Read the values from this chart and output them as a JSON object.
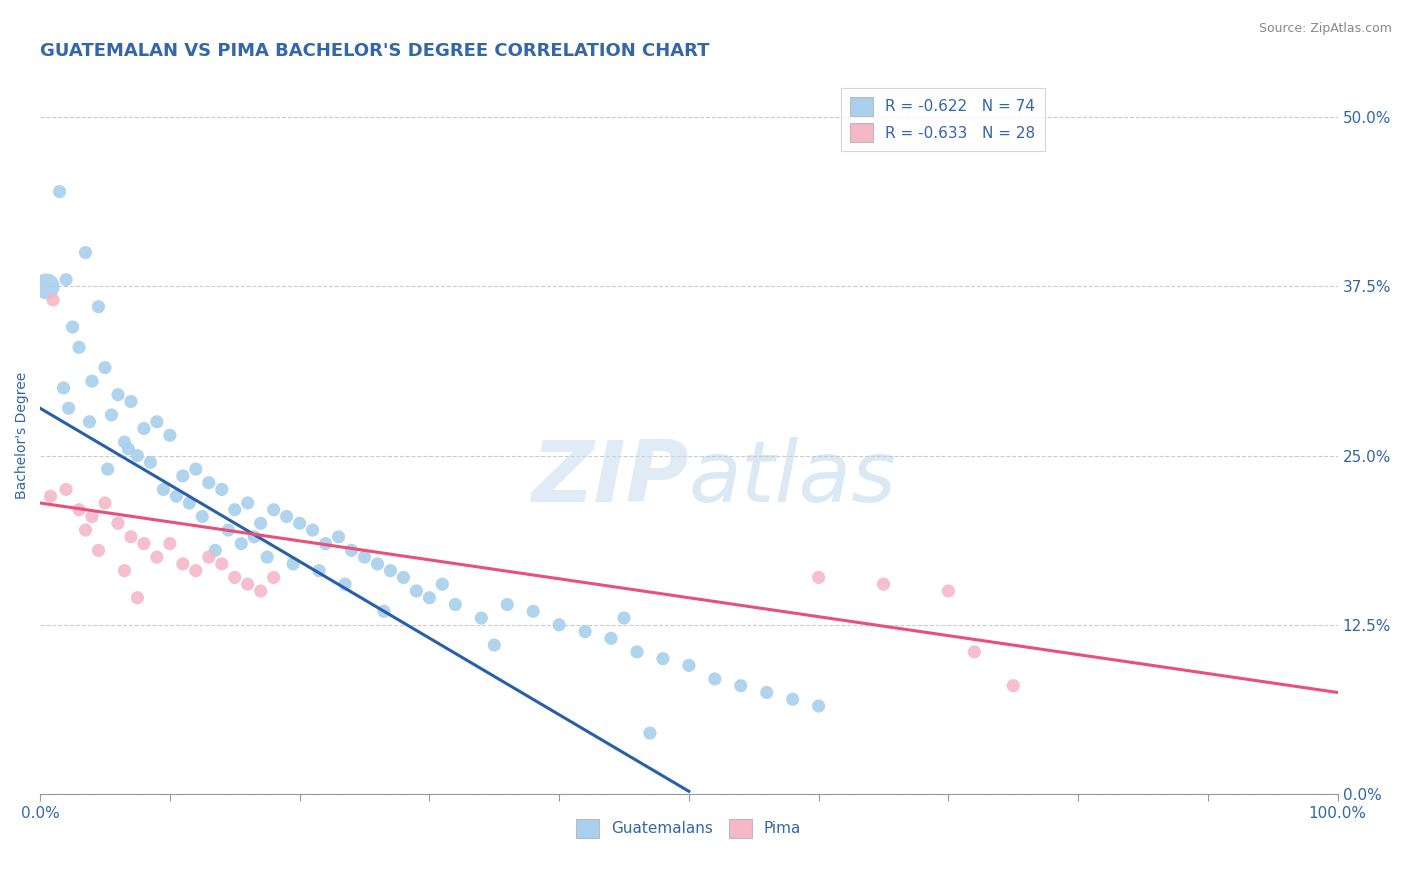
{
  "title": "GUATEMALAN VS PIMA BACHELOR'S DEGREE CORRELATION CHART",
  "source": "Source: ZipAtlas.com",
  "ylabel": "Bachelor's Degree",
  "ytick_labels": [
    "0.0%",
    "12.5%",
    "25.0%",
    "37.5%",
    "50.0%"
  ],
  "ytick_values": [
    0.0,
    12.5,
    25.0,
    37.5,
    50.0
  ],
  "xlim": [
    0.0,
    100.0
  ],
  "ylim": [
    0.0,
    53.0
  ],
  "blue_R": -0.622,
  "blue_N": 74,
  "pink_R": -0.633,
  "pink_N": 28,
  "blue_color": "#A8CFED",
  "pink_color": "#F4B8C8",
  "blue_line_color": "#2860A8",
  "pink_line_color": "#E8507A",
  "watermark_zip": "ZIP",
  "watermark_atlas": "atlas",
  "legend_blue_label": "R = -0.622   N = 74",
  "legend_pink_label": "R = -0.633   N = 28",
  "bottom_legend_blue": "Guatemalans",
  "bottom_legend_pink": "Pima",
  "blue_scatter_x": [
    1.5,
    3.5,
    4.5,
    2.0,
    2.5,
    3.0,
    1.8,
    2.2,
    4.0,
    5.0,
    5.5,
    6.0,
    3.8,
    7.0,
    8.0,
    6.5,
    7.5,
    9.0,
    10.0,
    5.2,
    6.8,
    8.5,
    11.0,
    12.0,
    9.5,
    13.0,
    10.5,
    11.5,
    14.0,
    15.0,
    12.5,
    16.0,
    17.0,
    14.5,
    18.0,
    19.0,
    16.5,
    15.5,
    20.0,
    13.5,
    21.0,
    17.5,
    22.0,
    23.0,
    19.5,
    24.0,
    25.0,
    21.5,
    26.0,
    27.0,
    28.0,
    23.5,
    29.0,
    30.0,
    31.0,
    32.0,
    26.5,
    34.0,
    36.0,
    38.0,
    40.0,
    35.0,
    42.0,
    44.0,
    46.0,
    48.0,
    50.0,
    52.0,
    54.0,
    45.0,
    56.0,
    58.0,
    60.0,
    47.0
  ],
  "blue_scatter_y": [
    44.5,
    40.0,
    36.0,
    38.0,
    34.5,
    33.0,
    30.0,
    28.5,
    30.5,
    31.5,
    28.0,
    29.5,
    27.5,
    29.0,
    27.0,
    26.0,
    25.0,
    27.5,
    26.5,
    24.0,
    25.5,
    24.5,
    23.5,
    24.0,
    22.5,
    23.0,
    22.0,
    21.5,
    22.5,
    21.0,
    20.5,
    21.5,
    20.0,
    19.5,
    21.0,
    20.5,
    19.0,
    18.5,
    20.0,
    18.0,
    19.5,
    17.5,
    18.5,
    19.0,
    17.0,
    18.0,
    17.5,
    16.5,
    17.0,
    16.5,
    16.0,
    15.5,
    15.0,
    14.5,
    15.5,
    14.0,
    13.5,
    13.0,
    14.0,
    13.5,
    12.5,
    11.0,
    12.0,
    11.5,
    10.5,
    10.0,
    9.5,
    8.5,
    8.0,
    13.0,
    7.5,
    7.0,
    6.5,
    4.5
  ],
  "blue_large_x": [
    0.5
  ],
  "blue_large_y": [
    37.5
  ],
  "blue_large_size": [
    350
  ],
  "pink_scatter_x": [
    1.0,
    0.8,
    2.0,
    3.0,
    4.0,
    5.0,
    3.5,
    6.0,
    7.0,
    8.0,
    9.0,
    4.5,
    10.0,
    11.0,
    12.0,
    13.0,
    14.0,
    15.0,
    16.0,
    6.5,
    7.5,
    17.0,
    18.0,
    60.0,
    65.0,
    70.0,
    72.0,
    75.0
  ],
  "pink_scatter_y": [
    36.5,
    22.0,
    22.5,
    21.0,
    20.5,
    21.5,
    19.5,
    20.0,
    19.0,
    18.5,
    17.5,
    18.0,
    18.5,
    17.0,
    16.5,
    17.5,
    17.0,
    16.0,
    15.5,
    16.5,
    14.5,
    15.0,
    16.0,
    16.0,
    15.5,
    15.0,
    10.5,
    8.0
  ],
  "blue_trendline_x": [
    0.0,
    50.0
  ],
  "blue_trendline_y": [
    28.5,
    0.2
  ],
  "pink_trendline_x": [
    0.0,
    100.0
  ],
  "pink_trendline_y": [
    21.5,
    7.5
  ],
  "xtick_positions": [
    0,
    10,
    20,
    30,
    40,
    50,
    60,
    70,
    80,
    90,
    100
  ],
  "grid_color": "#CCCCCC",
  "title_color": "#3366AA",
  "axis_color": "#3366AA",
  "tick_color": "#3366AA",
  "title_fontsize": 13,
  "axis_label_fontsize": 10,
  "tick_fontsize": 11
}
